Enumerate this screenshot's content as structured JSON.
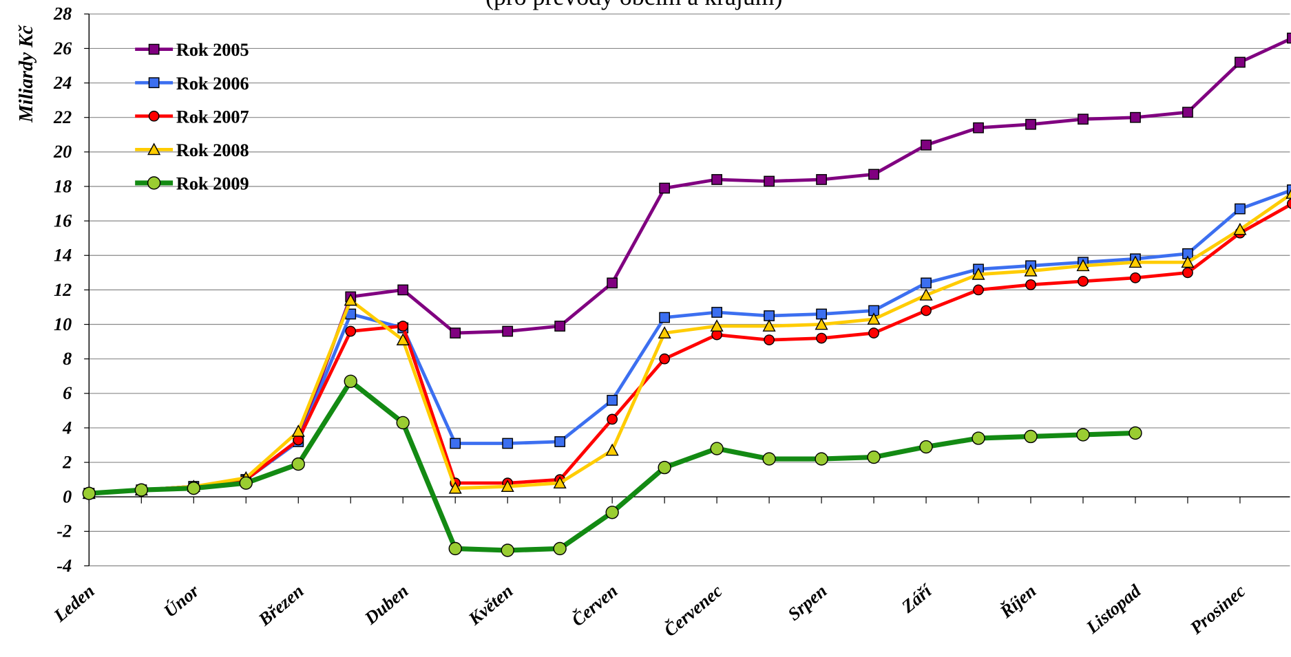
{
  "chart_data": {
    "type": "line",
    "subtitle": "(pro převody obcím a krajům)",
    "y_label": "Miliardy Kč",
    "categories": [
      "Leden",
      null,
      "Únor",
      null,
      "Březen",
      null,
      "Duben",
      null,
      "Květen",
      null,
      "Červen",
      null,
      "Červenec",
      null,
      "Srpen",
      null,
      "Září",
      null,
      "Říjen",
      null,
      "Listopad",
      null,
      "Prosinec",
      null
    ],
    "series": [
      {
        "name": "Rok 2005",
        "color": "#800080",
        "marker": "square",
        "marker_fill": "#800080",
        "values": [
          0.2,
          0.4,
          0.6,
          1.0,
          3.3,
          11.6,
          12.0,
          9.5,
          9.6,
          9.9,
          12.4,
          17.9,
          18.4,
          18.3,
          18.4,
          18.7,
          20.4,
          21.4,
          21.6,
          21.9,
          22.0,
          22.3,
          25.2,
          26.6
        ]
      },
      {
        "name": "Rok 2006",
        "color": "#3c6ff0",
        "marker": "square",
        "marker_fill": "#3c6ff0",
        "values": [
          0.2,
          0.4,
          0.6,
          1.0,
          3.2,
          10.6,
          9.8,
          3.1,
          3.1,
          3.2,
          5.6,
          10.4,
          10.7,
          10.5,
          10.6,
          10.8,
          12.4,
          13.2,
          13.4,
          13.6,
          13.8,
          14.1,
          16.7,
          17.8
        ]
      },
      {
        "name": "Rok 2007",
        "color": "#ff0000",
        "marker": "circle",
        "marker_fill": "#ff0000",
        "values": [
          0.2,
          0.4,
          0.6,
          1.0,
          3.3,
          9.6,
          9.9,
          0.8,
          0.8,
          1.0,
          4.5,
          8.0,
          9.4,
          9.1,
          9.2,
          9.5,
          10.8,
          12.0,
          12.3,
          12.5,
          12.7,
          13.0,
          15.3,
          17.0
        ]
      },
      {
        "name": "Rok 2008",
        "color": "#ffcc00",
        "marker": "triangle",
        "marker_fill": "#ffcc00",
        "values": [
          0.2,
          0.4,
          0.6,
          1.1,
          3.8,
          11.4,
          9.1,
          0.5,
          0.6,
          0.8,
          2.7,
          9.5,
          9.9,
          9.9,
          10.0,
          10.3,
          11.7,
          12.9,
          13.1,
          13.4,
          13.6,
          13.6,
          15.5,
          17.6
        ]
      },
      {
        "name": "Rok 2009",
        "color": "#138a13",
        "marker": "circle",
        "marker_fill": "#9acd32",
        "width": 6,
        "values": [
          0.2,
          0.4,
          0.5,
          0.8,
          1.9,
          6.7,
          4.3,
          -3.0,
          -3.1,
          -3.0,
          -0.9,
          1.7,
          2.8,
          2.2,
          2.2,
          2.3,
          2.9,
          3.4,
          3.5,
          3.6,
          3.7,
          null,
          null,
          null
        ]
      }
    ],
    "ylim": [
      -4,
      28
    ],
    "yticks": [
      -4,
      -2,
      0,
      2,
      4,
      6,
      8,
      10,
      12,
      14,
      16,
      18,
      20,
      22,
      24,
      26,
      28
    ],
    "grid": true,
    "legend": "top-left"
  }
}
